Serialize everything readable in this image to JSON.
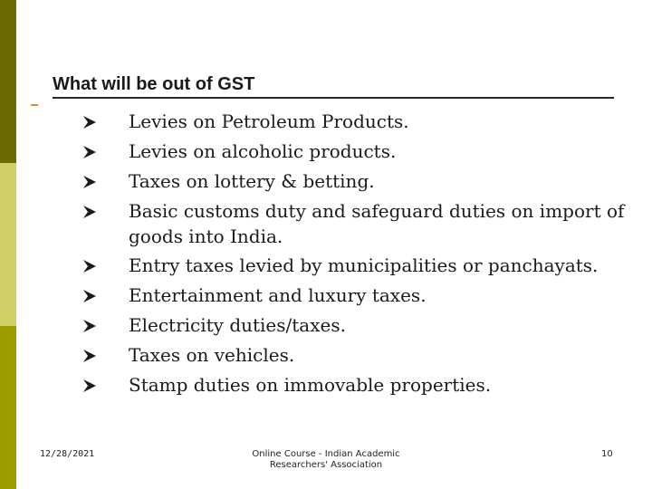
{
  "slide": {
    "title": "What will be out of GST",
    "bullet_icon": "arrowhead-bullet-icon",
    "items": [
      "Levies on Petroleum Products.",
      "Levies on alcoholic products.",
      "Taxes on lottery & betting.",
      "Basic customs duty and safeguard duties on import of goods into India.",
      "Entry taxes levied by municipalities or panchayats.",
      "Entertainment and luxury taxes.",
      "Electricity duties/taxes.",
      "Taxes on vehicles.",
      "Stamp duties on immovable properties."
    ]
  },
  "footer": {
    "date": "12/28/2021",
    "center_line1": "Online Course - Indian Academic",
    "center_line2": "Researchers' Association",
    "page": "10"
  },
  "colors": {
    "sidebar_top": "#6b6b00",
    "sidebar_middle": "#cfcf63",
    "sidebar_bottom": "#9c9c00",
    "accent_dash": "#d09a2a"
  }
}
